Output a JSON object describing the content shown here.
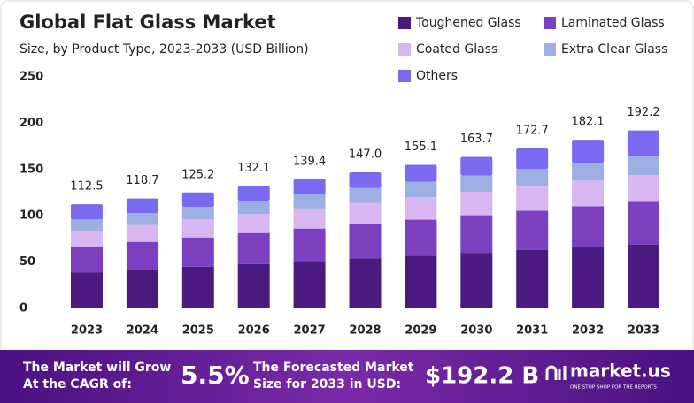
{
  "chart_data": {
    "type": "stacked_bar",
    "title": "Global Flat Glass Market",
    "subtitle": "Size, by Product Type, 2023-2033 (USD Billion)",
    "categories": [
      "2023",
      "2024",
      "2025",
      "2026",
      "2027",
      "2028",
      "2029",
      "2030",
      "2031",
      "2032",
      "2033"
    ],
    "series": [
      {
        "name": "Toughened Glass",
        "color": "#4b1a7e",
        "values": [
          39,
          42,
          45,
          48,
          51,
          54,
          57,
          60,
          63,
          66,
          69
        ]
      },
      {
        "name": "Laminated Glass",
        "color": "#7b3fc0",
        "values": [
          28,
          29.8,
          31.6,
          33.4,
          35.2,
          37,
          38.8,
          40.6,
          42.4,
          44.2,
          46
        ]
      },
      {
        "name": "Coated Glass",
        "color": "#d8b6f2",
        "values": [
          17,
          18.2,
          19.4,
          20.6,
          21.8,
          23,
          24.2,
          25.4,
          26.6,
          27.8,
          29
        ]
      },
      {
        "name": "Extra Clear Glass",
        "color": "#9dafe2",
        "values": [
          12,
          12.8,
          13.6,
          14.4,
          15.2,
          16,
          16.8,
          17.6,
          18.4,
          19.2,
          20
        ]
      },
      {
        "name": "Others",
        "color": "#7a6af0",
        "values": [
          16.5,
          15.9,
          15.6,
          15.7,
          16.2,
          17,
          18.3,
          20.1,
          22.3,
          24.9,
          28.2
        ]
      }
    ],
    "totals": [
      112.5,
      118.7,
      125.2,
      132.1,
      139.4,
      147,
      155.1,
      163.7,
      172.7,
      182.1,
      192.2
    ],
    "total_labels": [
      "112.5",
      "118.7",
      "125.2",
      "132.1",
      "139.4",
      "147.0",
      "155.1",
      "163.7",
      "172.7",
      "182.1",
      "192.2"
    ],
    "ylim": [
      0,
      250
    ],
    "yticks": [
      0,
      50,
      100,
      150,
      200,
      250
    ],
    "grid": false,
    "legend": "top-right"
  },
  "footer": {
    "cagr_text_1": "The Market will Grow",
    "cagr_text_2": "At the CAGR of:",
    "cagr": "5.5%",
    "forecast_text_1": "The Forecasted Market",
    "forecast_text_2": "Size for 2033 in USD:",
    "forecast": "$192.2 B",
    "brand": "market.us",
    "brand_tagline": "ONE STOP SHOP FOR THE REPORTS"
  }
}
